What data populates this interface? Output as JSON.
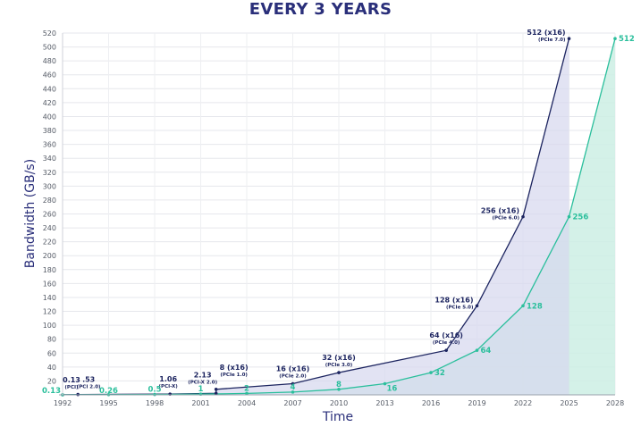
{
  "title": "EVERY 3 YEARS",
  "chart_data": {
    "type": "area",
    "xlabel": "Time",
    "ylabel": "Bandwidth (GB/s)",
    "x_ticks": [
      1992,
      1995,
      1998,
      2001,
      2004,
      2007,
      2010,
      2013,
      2016,
      2019,
      2022,
      2025,
      2028
    ],
    "xlim": [
      1992,
      2028
    ],
    "ylim": [
      0,
      520
    ],
    "y_ticks": [
      20,
      40,
      60,
      80,
      100,
      120,
      140,
      160,
      180,
      200,
      220,
      240,
      260,
      280,
      300,
      320,
      340,
      360,
      380,
      400,
      420,
      440,
      460,
      480,
      500,
      520
    ],
    "grid": true,
    "colors": {
      "dark": "#1d2560",
      "dark_fill": "#d7d8ee",
      "teal": "#2bbf9c",
      "teal_fill": "#cdeee4"
    },
    "series": [
      {
        "points": [
          {
            "x": 1992,
            "y": 0.13,
            "label": "0.13",
            "sub": "(PCI)"
          },
          {
            "x": 1993,
            "y": 0.53,
            "label": ".53",
            "sub": "(PCI 2.0)"
          },
          {
            "x": 1999,
            "y": 1.06,
            "label": "1.06",
            "sub": "(PCI-X)"
          },
          {
            "x": 2002,
            "y": 2.13,
            "label": "2.13",
            "sub": "(PCI-X 2.0)"
          },
          {
            "x": 2002,
            "y": 8,
            "label": "8 (x16)",
            "sub": "(PCIe 1.0)"
          },
          {
            "x": 2007,
            "y": 16,
            "label": "16 (x16)",
            "sub": "(PCIe 2.0)"
          },
          {
            "x": 2010,
            "y": 32,
            "label": "32 (x16)",
            "sub": "(PCIe 3.0)"
          },
          {
            "x": 2017,
            "y": 64,
            "label": "64 (x16)",
            "sub": "(PCIe 4.0)"
          },
          {
            "x": 2019,
            "y": 128,
            "label": "128 (x16)",
            "sub": "(PCIe 5.0)"
          },
          {
            "x": 2022,
            "y": 256,
            "label": "256 (x16)",
            "sub": "(PCIe 6.0)"
          },
          {
            "x": 2025,
            "y": 512,
            "label": "512 (x16)",
            "sub": "(PCIe 7.0)"
          }
        ]
      },
      {
        "points": [
          {
            "x": 1992,
            "y": 0.13,
            "label": "0.13"
          },
          {
            "x": 1995,
            "y": 0.26,
            "label": "0.26"
          },
          {
            "x": 1998,
            "y": 0.5,
            "label": "0.5"
          },
          {
            "x": 2001,
            "y": 1,
            "label": "1"
          },
          {
            "x": 2004,
            "y": 2,
            "label": "2"
          },
          {
            "x": 2007,
            "y": 4,
            "label": "4"
          },
          {
            "x": 2010,
            "y": 8,
            "label": "8"
          },
          {
            "x": 2013,
            "y": 16,
            "label": "16"
          },
          {
            "x": 2016,
            "y": 32,
            "label": "32"
          },
          {
            "x": 2019,
            "y": 64,
            "label": "64"
          },
          {
            "x": 2022,
            "y": 128,
            "label": "128"
          },
          {
            "x": 2025,
            "y": 256,
            "label": "256"
          },
          {
            "x": 2028,
            "y": 512,
            "label": "512"
          }
        ]
      }
    ]
  }
}
